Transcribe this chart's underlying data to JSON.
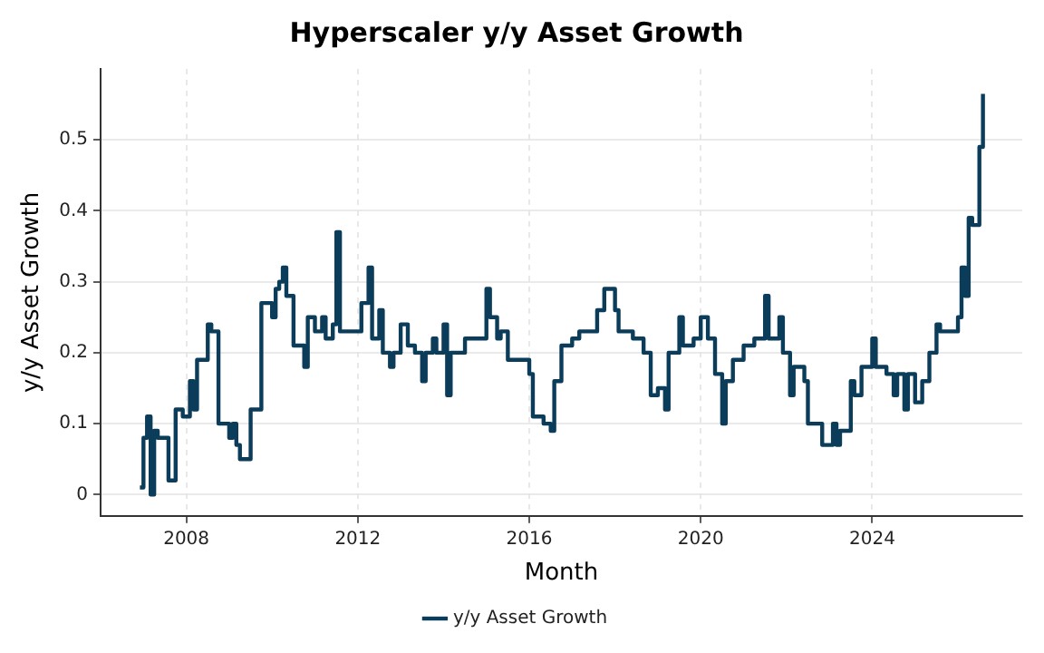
{
  "chart_data": {
    "type": "step",
    "title": "Hyperscaler y/y Asset Growth",
    "xlabel": "Month",
    "ylabel": "y/y Asset Growth",
    "xlim": [
      "2006-01",
      "2027-07"
    ],
    "xticks": [
      "2008",
      "2012",
      "2016",
      "2020",
      "2024"
    ],
    "ylim": [
      -0.03,
      0.6
    ],
    "yticks": [
      0,
      0.1,
      0.2,
      0.3,
      0.4,
      0.5
    ],
    "grid": true,
    "legend": "bottom",
    "x": [
      "2006-12",
      "2007-01",
      "2007-02",
      "2007-03",
      "2007-04",
      "2007-05",
      "2007-06",
      "2007-08",
      "2007-10",
      "2007-12",
      "2008-02",
      "2008-03",
      "2008-04",
      "2008-06",
      "2008-07",
      "2008-08",
      "2008-10",
      "2009-01",
      "2009-02",
      "2009-03",
      "2009-04",
      "2009-07",
      "2009-10",
      "2010-01",
      "2010-02",
      "2010-03",
      "2010-04",
      "2010-05",
      "2010-07",
      "2010-10",
      "2010-11",
      "2011-01",
      "2011-03",
      "2011-04",
      "2011-06",
      "2011-07",
      "2011-08",
      "2011-10",
      "2012-02",
      "2012-04",
      "2012-05",
      "2012-07",
      "2012-08",
      "2012-10",
      "2012-11",
      "2013-01",
      "2013-03",
      "2013-05",
      "2013-07",
      "2013-08",
      "2013-10",
      "2013-11",
      "2014-01",
      "2014-02",
      "2014-03",
      "2014-05",
      "2014-07",
      "2014-10",
      "2015-01",
      "2015-02",
      "2015-04",
      "2015-05",
      "2015-07",
      "2016-01",
      "2016-02",
      "2016-05",
      "2016-07",
      "2016-08",
      "2016-10",
      "2017-01",
      "2017-03",
      "2017-08",
      "2017-10",
      "2018-01",
      "2018-02",
      "2018-06",
      "2018-09",
      "2018-11",
      "2019-01",
      "2019-03",
      "2019-04",
      "2019-07",
      "2019-08",
      "2019-11",
      "2020-01",
      "2020-03",
      "2020-05",
      "2020-07",
      "2020-08",
      "2020-10",
      "2021-01",
      "2021-04",
      "2021-07",
      "2021-08",
      "2021-11",
      "2021-12",
      "2022-02",
      "2022-03",
      "2022-06",
      "2022-07",
      "2022-11",
      "2023-02",
      "2023-03",
      "2023-04",
      "2023-07",
      "2023-08",
      "2023-10",
      "2024-01",
      "2024-02",
      "2024-05",
      "2024-07",
      "2024-08",
      "2024-10",
      "2024-11",
      "2025-01",
      "2025-03",
      "2025-05",
      "2025-07",
      "2025-08",
      "2026-01",
      "2026-02",
      "2026-03",
      "2026-04",
      "2026-05",
      "2026-07",
      "2026-08"
    ],
    "series": [
      {
        "name": "y/y Asset Growth",
        "color": "#0b3d5b",
        "values": [
          0.01,
          0.08,
          0.11,
          0.0,
          0.09,
          0.08,
          0.08,
          0.02,
          0.12,
          0.11,
          0.16,
          0.12,
          0.19,
          0.19,
          0.24,
          0.23,
          0.1,
          0.08,
          0.1,
          0.07,
          0.05,
          0.12,
          0.27,
          0.25,
          0.29,
          0.3,
          0.32,
          0.28,
          0.21,
          0.18,
          0.25,
          0.23,
          0.25,
          0.22,
          0.24,
          0.37,
          0.23,
          0.23,
          0.27,
          0.32,
          0.22,
          0.26,
          0.2,
          0.18,
          0.2,
          0.24,
          0.21,
          0.2,
          0.16,
          0.2,
          0.22,
          0.2,
          0.24,
          0.14,
          0.2,
          0.2,
          0.22,
          0.22,
          0.29,
          0.25,
          0.22,
          0.23,
          0.19,
          0.17,
          0.11,
          0.1,
          0.09,
          0.16,
          0.21,
          0.22,
          0.23,
          0.26,
          0.29,
          0.26,
          0.23,
          0.22,
          0.2,
          0.14,
          0.15,
          0.12,
          0.2,
          0.25,
          0.21,
          0.22,
          0.25,
          0.22,
          0.17,
          0.1,
          0.16,
          0.19,
          0.21,
          0.22,
          0.28,
          0.22,
          0.25,
          0.2,
          0.14,
          0.18,
          0.16,
          0.1,
          0.07,
          0.1,
          0.07,
          0.09,
          0.16,
          0.14,
          0.18,
          0.22,
          0.18,
          0.17,
          0.14,
          0.17,
          0.12,
          0.17,
          0.13,
          0.16,
          0.2,
          0.24,
          0.23,
          0.25,
          0.32,
          0.28,
          0.39,
          0.38,
          0.49,
          0.565
        ]
      }
    ]
  }
}
